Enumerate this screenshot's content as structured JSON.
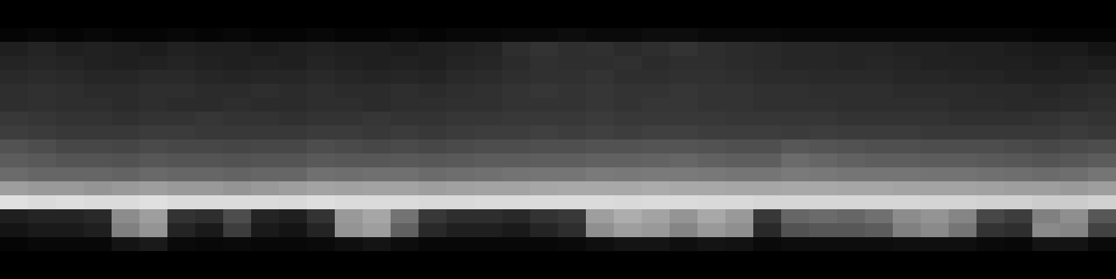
{
  "chart_data": {
    "type": "heatmap",
    "tick_labels": false,
    "zlim": [
      0,
      100
    ],
    "cells": [
      [
        0,
        0,
        0,
        0,
        0,
        0,
        0,
        0,
        0,
        0,
        0,
        0,
        0,
        0,
        0,
        0,
        0,
        0,
        0,
        0,
        0,
        0,
        0,
        0,
        0,
        0,
        0,
        0,
        0,
        0,
        0,
        0,
        0,
        0,
        0,
        0,
        0,
        0,
        0,
        0
      ],
      [
        0,
        0,
        0,
        0,
        0,
        0,
        0,
        0,
        0,
        0,
        0,
        0,
        0,
        0,
        0,
        0,
        0,
        0,
        0,
        0,
        0,
        0,
        0,
        0,
        0,
        0,
        0,
        0,
        0,
        0,
        0,
        0,
        0,
        0,
        0,
        0,
        0,
        0,
        0,
        0
      ],
      [
        2,
        3,
        2,
        3,
        2,
        2,
        3,
        2,
        3,
        2,
        2,
        3,
        2,
        2,
        3,
        2,
        3,
        3,
        4,
        4,
        5,
        4,
        4,
        5,
        5,
        4,
        4,
        4,
        3,
        3,
        3,
        3,
        3,
        3,
        3,
        3,
        3,
        2,
        2,
        2
      ],
      [
        12,
        14,
        12,
        13,
        12,
        11,
        13,
        12,
        12,
        11,
        12,
        13,
        12,
        12,
        11,
        12,
        13,
        14,
        18,
        20,
        18,
        19,
        17,
        18,
        20,
        18,
        17,
        16,
        15,
        15,
        14,
        14,
        13,
        13,
        12,
        12,
        11,
        10,
        10,
        8
      ],
      [
        14,
        15,
        14,
        13,
        12,
        13,
        14,
        13,
        12,
        13,
        12,
        14,
        13,
        12,
        13,
        12,
        14,
        15,
        17,
        19,
        18,
        18,
        19,
        17,
        18,
        18,
        17,
        16,
        15,
        15,
        14,
        15,
        14,
        13,
        13,
        12,
        12,
        11,
        12,
        11
      ],
      [
        16,
        17,
        16,
        15,
        15,
        16,
        16,
        15,
        14,
        15,
        15,
        16,
        15,
        14,
        15,
        14,
        16,
        17,
        18,
        19,
        19,
        20,
        18,
        18,
        19,
        19,
        18,
        17,
        17,
        16,
        16,
        16,
        15,
        15,
        14,
        14,
        13,
        13,
        13,
        14
      ],
      [
        18,
        19,
        18,
        17,
        17,
        18,
        18,
        17,
        17,
        18,
        17,
        18,
        17,
        17,
        18,
        17,
        18,
        19,
        20,
        21,
        20,
        21,
        20,
        20,
        21,
        20,
        20,
        19,
        19,
        18,
        18,
        18,
        17,
        17,
        17,
        16,
        16,
        15,
        16,
        17
      ],
      [
        18,
        19,
        18,
        18,
        17,
        18,
        17,
        17,
        18,
        17,
        17,
        18,
        18,
        17,
        18,
        18,
        19,
        19,
        20,
        20,
        20,
        21,
        20,
        21,
        21,
        20,
        20,
        19,
        19,
        19,
        18,
        18,
        18,
        18,
        17,
        17,
        16,
        16,
        17,
        18
      ],
      [
        22,
        21,
        20,
        20,
        19,
        20,
        20,
        21,
        20,
        20,
        19,
        20,
        20,
        21,
        20,
        20,
        21,
        21,
        22,
        22,
        22,
        23,
        22,
        22,
        22,
        22,
        21,
        21,
        21,
        21,
        20,
        20,
        20,
        20,
        19,
        19,
        19,
        20,
        21,
        20
      ],
      [
        24,
        23,
        22,
        22,
        22,
        23,
        23,
        22,
        22,
        22,
        22,
        23,
        23,
        22,
        23,
        22,
        23,
        24,
        24,
        25,
        24,
        25,
        24,
        25,
        25,
        24,
        24,
        24,
        23,
        24,
        23,
        23,
        23,
        22,
        22,
        22,
        22,
        22,
        23,
        22
      ],
      [
        32,
        30,
        28,
        28,
        27,
        29,
        28,
        28,
        27,
        28,
        28,
        30,
        29,
        28,
        29,
        28,
        29,
        30,
        30,
        31,
        31,
        32,
        32,
        33,
        33,
        32,
        31,
        31,
        34,
        33,
        32,
        31,
        31,
        30,
        30,
        30,
        29,
        28,
        29,
        30
      ],
      [
        36,
        35,
        33,
        33,
        32,
        34,
        33,
        33,
        32,
        33,
        33,
        35,
        34,
        34,
        35,
        34,
        35,
        36,
        36,
        37,
        37,
        38,
        38,
        39,
        40,
        38,
        37,
        37,
        42,
        40,
        38,
        37,
        37,
        36,
        36,
        35,
        34,
        33,
        34,
        36
      ],
      [
        42,
        40,
        40,
        40,
        39,
        41,
        40,
        40,
        39,
        40,
        40,
        44,
        43,
        44,
        44,
        42,
        43,
        44,
        45,
        46,
        46,
        48,
        47,
        48,
        48,
        47,
        46,
        46,
        48,
        47,
        46,
        46,
        46,
        45,
        45,
        44,
        43,
        42,
        43,
        46
      ],
      [
        62,
        60,
        60,
        58,
        60,
        62,
        60,
        60,
        58,
        60,
        62,
        64,
        63,
        64,
        64,
        62,
        63,
        64,
        64,
        65,
        66,
        66,
        66,
        67,
        66,
        66,
        65,
        65,
        66,
        66,
        65,
        65,
        64,
        64,
        64,
        63,
        62,
        62,
        60,
        62
      ],
      [
        88,
        86,
        87,
        86,
        86,
        88,
        86,
        86,
        86,
        86,
        85,
        87,
        86,
        86,
        86,
        85,
        85,
        86,
        86,
        86,
        86,
        86,
        85,
        86,
        86,
        85,
        85,
        84,
        84,
        84,
        84,
        84,
        84,
        83,
        83,
        82,
        82,
        80,
        80,
        82
      ],
      [
        12,
        14,
        14,
        16,
        55,
        62,
        20,
        18,
        30,
        14,
        12,
        20,
        60,
        65,
        45,
        22,
        18,
        18,
        16,
        20,
        22,
        62,
        68,
        64,
        58,
        66,
        60,
        22,
        40,
        42,
        40,
        44,
        55,
        58,
        52,
        28,
        24,
        50,
        56,
        34
      ],
      [
        8,
        10,
        10,
        12,
        50,
        58,
        14,
        10,
        24,
        10,
        8,
        14,
        58,
        62,
        38,
        16,
        12,
        12,
        10,
        14,
        18,
        56,
        62,
        60,
        52,
        60,
        56,
        16,
        32,
        34,
        34,
        36,
        50,
        54,
        46,
        20,
        18,
        54,
        52,
        26
      ],
      [
        2,
        3,
        3,
        3,
        8,
        10,
        4,
        3,
        4,
        3,
        3,
        4,
        6,
        8,
        5,
        3,
        3,
        3,
        3,
        3,
        4,
        6,
        8,
        8,
        6,
        8,
        7,
        4,
        5,
        5,
        5,
        5,
        6,
        6,
        6,
        4,
        3,
        8,
        8,
        4
      ],
      [
        0,
        0,
        0,
        0,
        0,
        0,
        0,
        0,
        0,
        0,
        0,
        0,
        0,
        0,
        0,
        0,
        0,
        0,
        0,
        0,
        0,
        0,
        0,
        0,
        0,
        0,
        0,
        0,
        0,
        0,
        0,
        0,
        0,
        0,
        0,
        0,
        0,
        0,
        0,
        0
      ],
      [
        0,
        0,
        0,
        0,
        0,
        0,
        0,
        0,
        0,
        0,
        0,
        0,
        0,
        0,
        0,
        0,
        0,
        0,
        0,
        0,
        0,
        0,
        0,
        0,
        0,
        0,
        0,
        0,
        0,
        0,
        0,
        0,
        0,
        0,
        0,
        0,
        0,
        0,
        0,
        0
      ]
    ]
  }
}
